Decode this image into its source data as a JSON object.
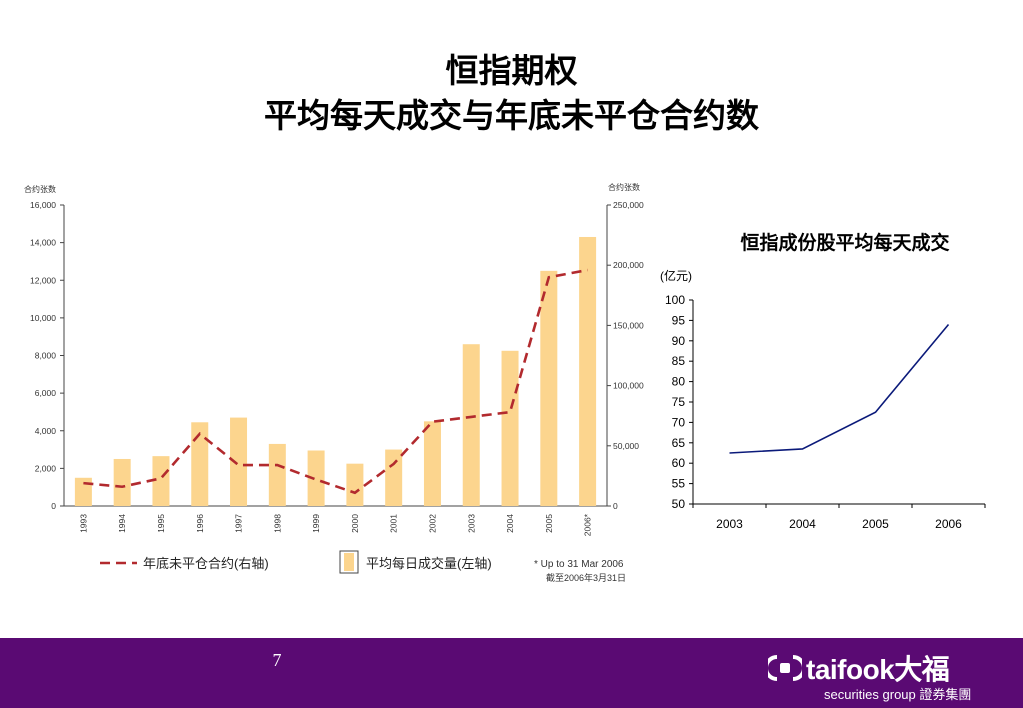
{
  "title": {
    "line1": "恒指期权",
    "line2": "平均每天成交与年底未平仓合约数"
  },
  "chart_data": [
    {
      "type": "bar",
      "left_axis_label": "合约张数",
      "right_axis_label": "合约张数",
      "categories": [
        "1993",
        "1994",
        "1995",
        "1996",
        "1997",
        "1998",
        "1999",
        "2000",
        "2001",
        "2002",
        "2003",
        "2004",
        "2005",
        "2006*"
      ],
      "left_ylim": [
        0,
        16000
      ],
      "left_ticks": [
        "0",
        "2,000",
        "4,000",
        "6,000",
        "8,000",
        "10,000",
        "12,000",
        "14,000",
        "16,000"
      ],
      "right_ylim": [
        0,
        250000
      ],
      "right_ticks": [
        "0",
        "50,000",
        "100,000",
        "150,000",
        "200,000",
        "250,000"
      ],
      "series": [
        {
          "name": "平均每日成交量(左轴)",
          "axis": "left",
          "style": "bar",
          "color": "#fcd58e",
          "values": [
            1500,
            2500,
            2650,
            4450,
            4700,
            3300,
            2950,
            2250,
            3000,
            4500,
            8600,
            8250,
            12500,
            14300
          ]
        },
        {
          "name": "年底未平仓合约(右轴)",
          "axis": "right",
          "style": "dashed-line",
          "color": "#b22a2e",
          "values": [
            19000,
            16000,
            23000,
            60000,
            34000,
            34000,
            22000,
            11000,
            35000,
            70000,
            74000,
            78000,
            190000,
            196000
          ]
        }
      ],
      "footnote": [
        "* Up to 31 Mar 2006",
        "截至2006年3月31日"
      ]
    },
    {
      "type": "line",
      "title": "恒指成份股平均每天成交",
      "ylabel": "(亿元)",
      "x": [
        "2003",
        "2004",
        "2005",
        "2006"
      ],
      "ylim": [
        50,
        100
      ],
      "yticks": [
        "50",
        "55",
        "60",
        "65",
        "70",
        "75",
        "80",
        "85",
        "90",
        "95",
        "100"
      ],
      "series": [
        {
          "values": [
            62.5,
            63.5,
            72.5,
            94
          ],
          "color": "#0b1a7a"
        }
      ]
    }
  ],
  "footer": {
    "page_number": "7",
    "logo_text": "taifook大福",
    "logo_sub": "securities group 證券集團",
    "bg_color": "#5a0a73"
  }
}
